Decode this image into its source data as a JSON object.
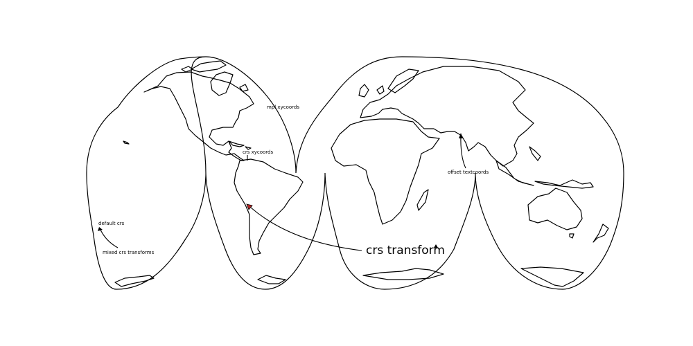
{
  "map": {
    "projection": "Interrupted Goode Homolosine",
    "feature": "coastlines",
    "colors": {
      "outline": "#000000",
      "marker": "#b22222",
      "background": "#ffffff"
    }
  },
  "annotations": {
    "mpl_xycoords": "mpl xycoords",
    "crs_xycoords": "crs xycoords",
    "offset_textcoords": "offset textcoords",
    "default_crs": "default crs",
    "mixed_crs_transforms": "mixed crs transforms",
    "crs_transform": "crs transform"
  }
}
